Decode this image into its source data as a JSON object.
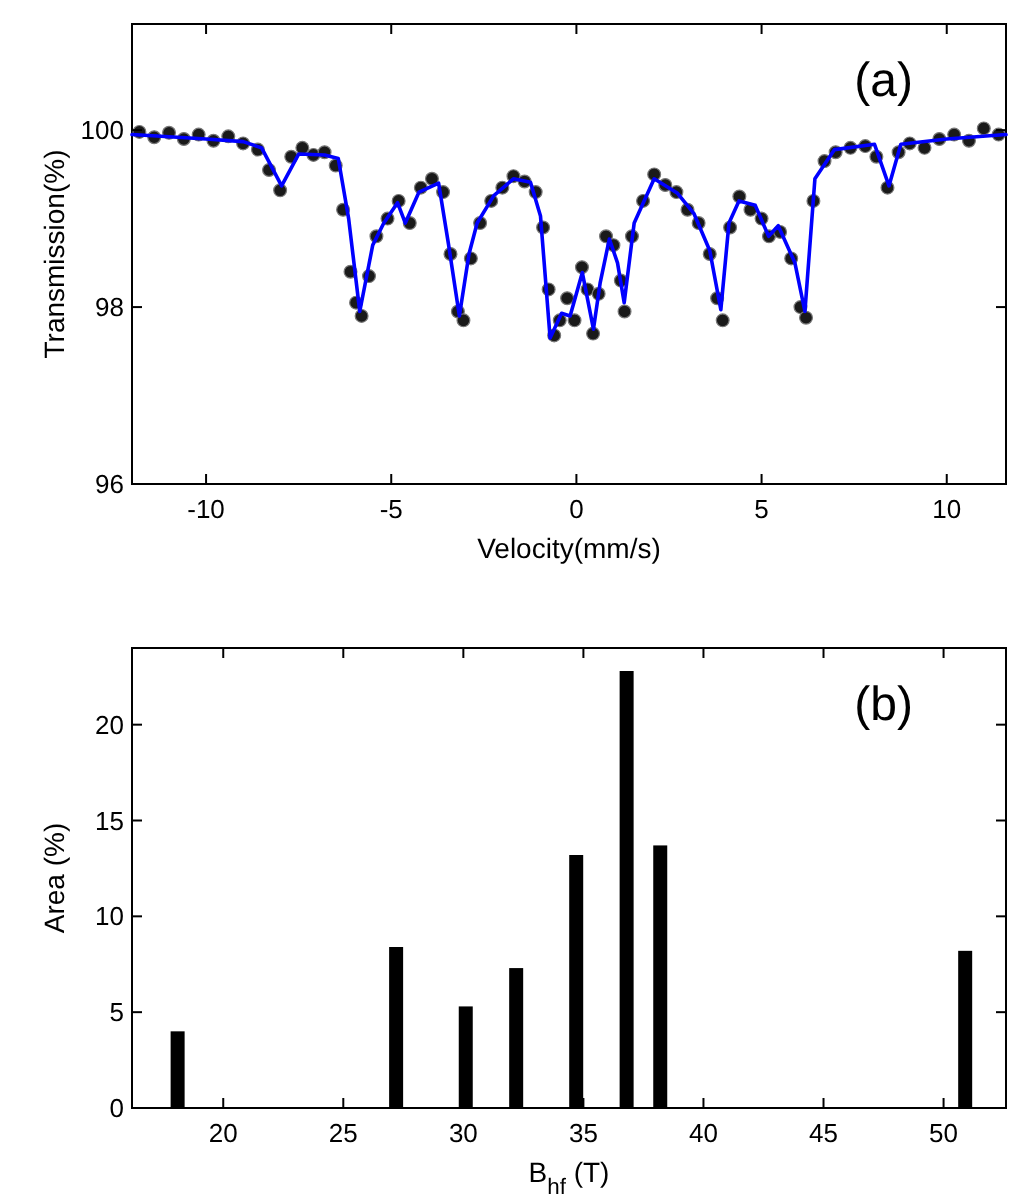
{
  "chart_data": [
    {
      "type": "scatter",
      "title": "(a)",
      "xlabel": "Velocity(mm/s)",
      "ylabel": "Transmission(%)",
      "xlim": [
        -12,
        11.6
      ],
      "ylim": [
        96,
        101.2
      ],
      "xticks": [
        -10,
        -5,
        0,
        5,
        10
      ],
      "yticks": [
        96,
        98,
        100
      ],
      "grid": false,
      "series": [
        {
          "marker": "circle",
          "color": "#1a1a1a",
          "x": [
            -11.8,
            -11.4,
            -11,
            -10.6,
            -10.2,
            -9.8,
            -9.4,
            -9,
            -8.6,
            -8.3,
            -8,
            -7.7,
            -7.4,
            -7.1,
            -6.8,
            -6.5,
            -6.3,
            -6.1,
            -5.95,
            -5.8,
            -5.6,
            -5.4,
            -5.1,
            -4.8,
            -4.5,
            -4.2,
            -3.9,
            -3.6,
            -3.4,
            -3.2,
            -3.05,
            -2.85,
            -2.6,
            -2.3,
            -2,
            -1.7,
            -1.4,
            -1.1,
            -0.9,
            -0.75,
            -0.6,
            -0.45,
            -0.25,
            -0.05,
            0.15,
            0.3,
            0.45,
            0.6,
            0.8,
            1,
            1.2,
            1.3,
            1.5,
            1.8,
            2.1,
            2.4,
            2.7,
            3,
            3.3,
            3.6,
            3.8,
            3.95,
            4.15,
            4.4,
            4.7,
            5,
            5.2,
            5.5,
            5.8,
            6.05,
            6.2,
            6.4,
            6.7,
            7,
            7.4,
            7.8,
            8.1,
            8.4,
            8.7,
            9,
            9.4,
            9.8,
            10.2,
            10.6,
            11,
            11.4
          ],
          "values": [
            99.98,
            99.92,
            99.97,
            99.9,
            99.95,
            99.88,
            99.93,
            99.85,
            99.78,
            99.55,
            99.32,
            99.7,
            99.8,
            99.72,
            99.75,
            99.6,
            99.1,
            98.4,
            98.05,
            97.9,
            98.35,
            98.8,
            99.0,
            99.2,
            98.95,
            99.35,
            99.45,
            99.3,
            98.6,
            97.95,
            97.85,
            98.55,
            98.95,
            99.2,
            99.35,
            99.48,
            99.42,
            99.3,
            98.9,
            98.2,
            97.68,
            97.85,
            98.1,
            97.85,
            98.45,
            98.2,
            97.7,
            98.15,
            98.8,
            98.7,
            98.3,
            97.95,
            98.8,
            99.2,
            99.5,
            99.38,
            99.3,
            99.1,
            98.95,
            98.6,
            98.1,
            97.85,
            98.9,
            99.25,
            99.1,
            99.0,
            98.8,
            98.85,
            98.55,
            98.0,
            97.88,
            99.2,
            99.65,
            99.75,
            99.8,
            99.82,
            99.7,
            99.35,
            99.75,
            99.85,
            99.8,
            99.9,
            99.95,
            99.88,
            100.02,
            99.95
          ]
        },
        {
          "type": "line",
          "line_style": "solid",
          "color": "#0000ff",
          "x": [
            -12,
            -10,
            -9,
            -8.5,
            -7.96,
            -7.5,
            -6.8,
            -6.43,
            -6.15,
            -5.85,
            -5.5,
            -5.2,
            -4.83,
            -4.62,
            -4.25,
            -3.72,
            -3.45,
            -3.16,
            -2.9,
            -2.68,
            -2.23,
            -1.7,
            -1.24,
            -0.97,
            -0.71,
            -0.4,
            -0.17,
            0.16,
            0.46,
            0.64,
            0.89,
            1.11,
            1.29,
            1.56,
            2.1,
            2.72,
            3.17,
            3.6,
            3.9,
            4.12,
            4.39,
            4.83,
            5.19,
            5.45,
            5.9,
            6.17,
            6.44,
            6.97,
            8.05,
            8.44,
            8.76,
            10,
            11.6
          ],
          "values": [
            99.95,
            99.9,
            99.87,
            99.8,
            99.37,
            99.73,
            99.72,
            99.68,
            99.0,
            97.95,
            98.7,
            98.95,
            99.18,
            98.95,
            99.3,
            99.4,
            98.7,
            97.9,
            98.6,
            98.95,
            99.26,
            99.45,
            99.41,
            99.03,
            97.65,
            97.93,
            97.9,
            98.39,
            97.75,
            98.27,
            98.77,
            98.5,
            98.05,
            98.95,
            99.45,
            99.29,
            99.06,
            98.64,
            97.97,
            98.95,
            99.2,
            99.15,
            98.8,
            98.92,
            98.5,
            97.95,
            99.45,
            99.78,
            99.84,
            99.37,
            99.84,
            99.9,
            99.95
          ]
        }
      ]
    },
    {
      "type": "bar",
      "title": "(b)",
      "xlabel": "B$_{hf}$ (T)",
      "ylabel": "Area (%)",
      "xlim": [
        16.2,
        52.6
      ],
      "ylim": [
        0,
        24
      ],
      "xticks": [
        20,
        25,
        30,
        35,
        40,
        45,
        50
      ],
      "yticks": [
        0,
        5,
        10,
        15,
        20
      ],
      "grid": false,
      "x": [
        18.1,
        27.2,
        30.1,
        32.2,
        34.7,
        36.8,
        38.2,
        50.9
      ],
      "values": [
        4.0,
        8.4,
        5.3,
        7.3,
        13.2,
        22.8,
        13.7,
        8.2
      ],
      "color": "#000000"
    }
  ]
}
